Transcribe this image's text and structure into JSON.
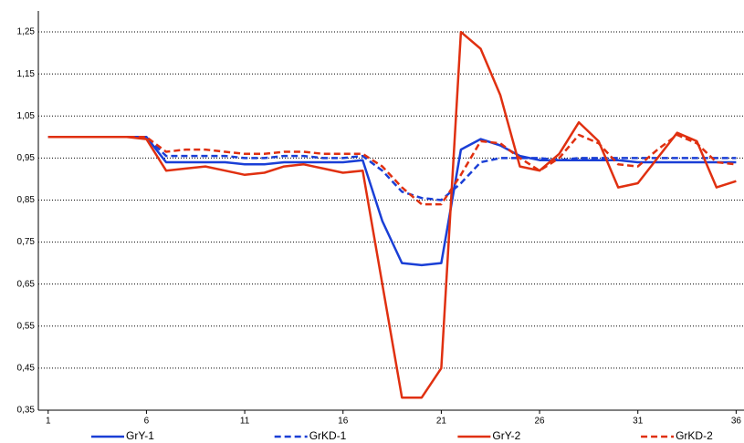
{
  "chart_data": {
    "type": "line",
    "x": [
      1,
      2,
      3,
      4,
      5,
      6,
      7,
      8,
      9,
      10,
      11,
      12,
      13,
      14,
      15,
      16,
      17,
      18,
      19,
      20,
      21,
      22,
      23,
      24,
      25,
      26,
      27,
      28,
      29,
      30,
      31,
      32,
      33,
      34,
      35,
      36
    ],
    "xlim": [
      0.5,
      36.4
    ],
    "xticks": [
      1,
      6,
      11,
      16,
      21,
      26,
      31,
      36
    ],
    "ylim": [
      0.35,
      1.3
    ],
    "yticks": [
      {
        "value": 0.35,
        "label": "0,35"
      },
      {
        "value": 0.45,
        "label": "0,45"
      },
      {
        "value": 0.55,
        "label": "0,55"
      },
      {
        "value": 0.65,
        "label": "0,65"
      },
      {
        "value": 0.75,
        "label": "0,75"
      },
      {
        "value": 0.85,
        "label": "0,85"
      },
      {
        "value": 0.95,
        "label": "0,95"
      },
      {
        "value": 1.05,
        "label": "1,05"
      },
      {
        "value": 1.15,
        "label": "1,15"
      },
      {
        "value": 1.25,
        "label": "1,25"
      }
    ],
    "grid": true,
    "legend": "bottom",
    "series": [
      {
        "name": "GrY-1",
        "color": "#1a3fd6",
        "dash": false,
        "values": [
          1.0,
          1.0,
          1.0,
          1.0,
          1.0,
          1.0,
          0.94,
          0.94,
          0.94,
          0.94,
          0.935,
          0.935,
          0.94,
          0.94,
          0.94,
          0.94,
          0.945,
          0.8,
          0.7,
          0.695,
          0.7,
          0.97,
          0.995,
          0.98,
          0.955,
          0.945,
          0.945,
          0.945,
          0.945,
          0.945,
          0.94,
          0.94,
          0.94,
          0.94,
          0.94,
          0.94
        ]
      },
      {
        "name": "GrKD-1",
        "color": "#1a3fd6",
        "dash": true,
        "values": [
          1.0,
          1.0,
          1.0,
          1.0,
          1.0,
          1.0,
          0.955,
          0.955,
          0.955,
          0.955,
          0.95,
          0.95,
          0.955,
          0.955,
          0.95,
          0.95,
          0.955,
          0.92,
          0.87,
          0.855,
          0.85,
          0.89,
          0.94,
          0.95,
          0.95,
          0.95,
          0.945,
          0.95,
          0.95,
          0.95,
          0.95,
          0.95,
          0.95,
          0.95,
          0.95,
          0.95
        ]
      },
      {
        "name": "GrY-2",
        "color": "#e03010",
        "dash": false,
        "values": [
          1.0,
          1.0,
          1.0,
          1.0,
          1.0,
          0.995,
          0.92,
          0.925,
          0.93,
          0.92,
          0.91,
          0.915,
          0.93,
          0.935,
          0.925,
          0.915,
          0.92,
          0.65,
          0.38,
          0.38,
          0.45,
          1.25,
          1.21,
          1.1,
          0.93,
          0.92,
          0.96,
          1.035,
          0.99,
          0.88,
          0.89,
          0.95,
          1.01,
          0.99,
          0.88,
          0.895
        ]
      },
      {
        "name": "GrKD-2",
        "color": "#e03010",
        "dash": true,
        "values": [
          1.0,
          1.0,
          1.0,
          1.0,
          1.0,
          1.0,
          0.965,
          0.97,
          0.97,
          0.965,
          0.96,
          0.96,
          0.965,
          0.965,
          0.96,
          0.96,
          0.96,
          0.93,
          0.88,
          0.84,
          0.84,
          0.91,
          0.99,
          0.985,
          0.95,
          0.92,
          0.95,
          1.005,
          0.985,
          0.935,
          0.93,
          0.97,
          1.005,
          0.985,
          0.94,
          0.935
        ]
      }
    ]
  }
}
